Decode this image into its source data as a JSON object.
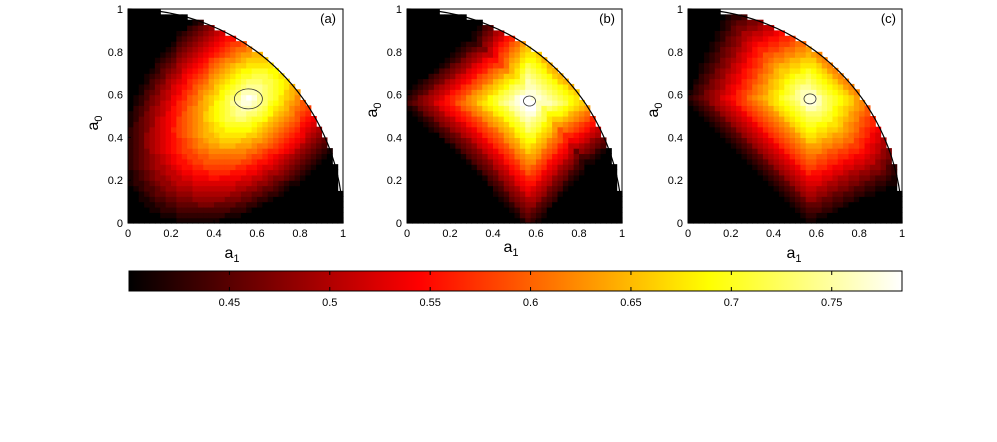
{
  "chart_data": [
    {
      "type": "heatmap",
      "panel_label": "(a)",
      "xlabel": "a",
      "xlabel_sub": "1",
      "ylabel": "a",
      "ylabel_sub": "0",
      "xlim": [
        0,
        1
      ],
      "ylim": [
        0,
        1
      ],
      "x_ticks": [
        "0",
        "0.2",
        "0.4",
        "0.6",
        "0.8",
        "1"
      ],
      "y_ticks": [
        "0",
        "0.2",
        "0.4",
        "0.6",
        "0.8",
        "1"
      ],
      "domain": "quarter-disk a0^2 + a1^2 <= 1",
      "peak": {
        "a1": 0.56,
        "a0": 0.58,
        "value": 0.78
      },
      "min_value": 0.4,
      "contour_style": "smooth elliptical"
    },
    {
      "type": "heatmap",
      "panel_label": "(b)",
      "xlabel": "a",
      "xlabel_sub": "1",
      "ylabel": "a",
      "ylabel_sub": "0",
      "xlim": [
        0,
        1
      ],
      "ylim": [
        0,
        1
      ],
      "x_ticks": [
        "0",
        "0.2",
        "0.4",
        "0.6",
        "0.8",
        "1"
      ],
      "y_ticks": [
        "0",
        "0.2",
        "0.4",
        "0.6",
        "0.8",
        "1"
      ],
      "domain": "quarter-disk a0^2 + a1^2 <= 1",
      "peak": {
        "a1": 0.57,
        "a0": 0.57,
        "value": 0.78
      },
      "min_value": 0.4,
      "contour_style": "pinched with crossing ridges"
    },
    {
      "type": "heatmap",
      "panel_label": "(c)",
      "xlabel": "a",
      "xlabel_sub": "1",
      "ylabel": "a",
      "ylabel_sub": "0",
      "xlim": [
        0,
        1
      ],
      "ylim": [
        0,
        1
      ],
      "x_ticks": [
        "0",
        "0.2",
        "0.4",
        "0.6",
        "0.8",
        "1"
      ],
      "y_ticks": [
        "0",
        "0.2",
        "0.4",
        "0.6",
        "0.8",
        "1"
      ],
      "domain": "quarter-disk a0^2 + a1^2 <= 1",
      "peak": {
        "a1": 0.57,
        "a0": 0.58,
        "value": 0.78
      },
      "min_value": 0.4,
      "contour_style": "faceted diamond"
    }
  ],
  "colorbar": {
    "colormap": "hot",
    "range": [
      0.4,
      0.785
    ],
    "ticks": [
      "0.45",
      "0.5",
      "0.55",
      "0.6",
      "0.65",
      "0.7",
      "0.75"
    ],
    "tick_values": [
      0.45,
      0.5,
      0.55,
      0.6,
      0.65,
      0.7,
      0.75
    ]
  }
}
